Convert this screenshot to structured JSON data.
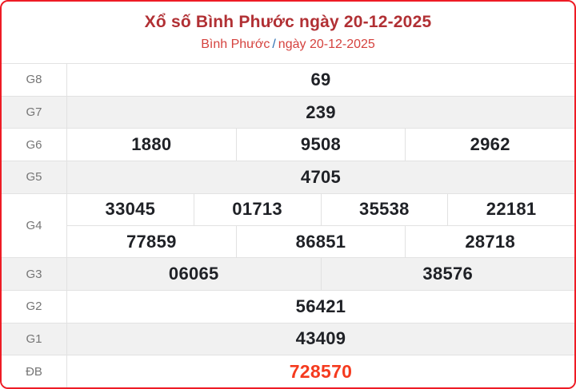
{
  "header": {
    "title": "Xổ số Bình Phước ngày 20-12-2025",
    "breadcrumb": {
      "province": "Bình Phước",
      "separator": "/",
      "date": "ngày 20-12-2025"
    }
  },
  "results": {
    "rows": [
      {
        "label": "G8",
        "groups": [
          [
            "69"
          ]
        ]
      },
      {
        "label": "G7",
        "groups": [
          [
            "239"
          ]
        ]
      },
      {
        "label": "G6",
        "groups": [
          [
            "1880",
            "9508",
            "2962"
          ]
        ]
      },
      {
        "label": "G5",
        "groups": [
          [
            "4705"
          ]
        ]
      },
      {
        "label": "G4",
        "groups": [
          [
            "33045",
            "01713",
            "35538",
            "22181"
          ],
          [
            "77859",
            "86851",
            "28718"
          ]
        ]
      },
      {
        "label": "G3",
        "groups": [
          [
            "06065",
            "38576"
          ]
        ]
      },
      {
        "label": "G2",
        "groups": [
          [
            "56421"
          ]
        ]
      },
      {
        "label": "G1",
        "groups": [
          [
            "43409"
          ]
        ]
      },
      {
        "label": "ĐB",
        "groups": [
          [
            "728570"
          ]
        ],
        "special": true
      }
    ]
  },
  "colors": {
    "card_border_red": "#ee1c25",
    "title_red": "#b13034",
    "subtitle_red": "#d5423e",
    "separator_blue": "#2d6fb2",
    "special_prize_red": "#f53a1e",
    "number_dark": "#1f2126",
    "label_gray": "#757575",
    "stripe_gray": "#f1f1f1",
    "divider_gray": "#e2e2e2"
  }
}
